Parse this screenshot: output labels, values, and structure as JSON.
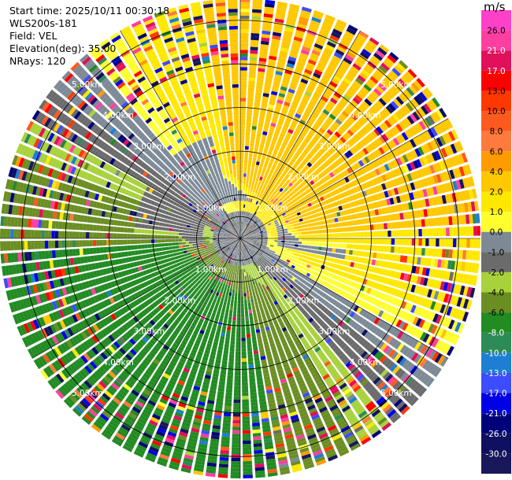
{
  "info": {
    "start_time": "Start time: 2025/10/11 00:30:18",
    "site": "WLS200s-181",
    "field": "Field: VEL",
    "elevation": "Elevation(deg): 35.00",
    "nrays": "NRays: 120"
  },
  "chart_data": {
    "type": "heatmap",
    "projection": "polar PPI",
    "field": "VEL",
    "units": "m/s",
    "elevation_deg": 35.0,
    "n_rays": 120,
    "max_range_km": 5.5,
    "range_rings_km": [
      1.0,
      2.0,
      3.0,
      4.0,
      5.0
    ],
    "range_ring_labels": [
      "1.00km",
      "2.00km",
      "3.00km",
      "4.00km",
      "5.00km"
    ],
    "azimuth_spokes_deg": [
      0,
      30,
      60,
      90,
      120,
      150,
      180,
      210,
      240,
      270,
      300,
      330
    ],
    "colorbar": {
      "label": "m/s",
      "ticks": [
        "26.0",
        "21.0",
        "17.0",
        "13.0",
        "10.0",
        "8.0",
        "6.0",
        "4.0",
        "2.0",
        "1.0",
        "0.0",
        "-1.0",
        "-2.0",
        "-4.0",
        "-6.0",
        "-8.0",
        "-10.0",
        "-13.0",
        "-17.0",
        "-21.0",
        "-26.0",
        "-30.0"
      ],
      "colors": [
        "#ff3fa0",
        "#e0105a",
        "#ff0000",
        "#ff3800",
        "#ff5a1e",
        "#ff7a3c",
        "#ff9a00",
        "#ffc800",
        "#ffe800",
        "#ffff30",
        "#7d8a96",
        "#6b6b6b",
        "#a8d23c",
        "#6b8e23",
        "#228b22",
        "#2e8b57",
        "#1e7ed2",
        "#3c4cff",
        "#0000e6",
        "#00007a",
        "#101060",
        "#18185a"
      ],
      "top_color": "#ff40c8"
    },
    "approx_pattern": [
      {
        "sector": "NW",
        "dominant_values": "0.0 to 2.0 (grey/yellow)"
      },
      {
        "sector": "N",
        "dominant_values": "4.0 (yellow), mixed near 0 at center"
      },
      {
        "sector": "NE",
        "dominant_values": "4.0 to 8.0 (yellow/orange)"
      },
      {
        "sector": "E",
        "dominant_values": "-1.0 to 4.0 (grey/yellow), noisy at far range"
      },
      {
        "sector": "SE",
        "dominant_values": "-2.0 to 4.0, noisy at far range"
      },
      {
        "sector": "S",
        "dominant_values": "-4.0 to -6.0 (green)"
      },
      {
        "sector": "SW",
        "dominant_values": "-6.0 to -8.0 (green)"
      },
      {
        "sector": "W",
        "dominant_values": "-4.0 to -6.0 (green)"
      }
    ]
  }
}
